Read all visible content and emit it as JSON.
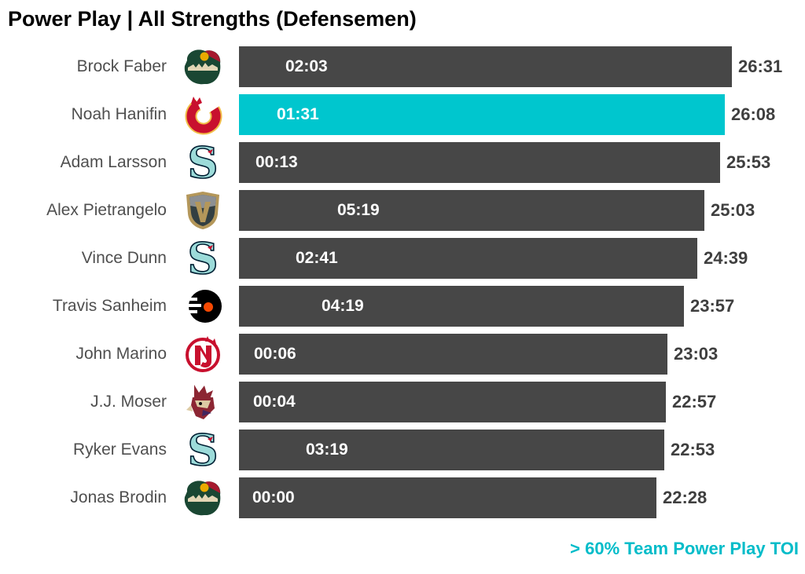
{
  "title": "Power Play | All Strengths (Defensemen)",
  "footnote": "> 60% Team Power Play TOI",
  "colors": {
    "bar": "#474747",
    "highlight_bar": "#00c6ce",
    "bar_label_text": "#ffffff",
    "value_label_text": "#3f3f3f",
    "name_text": "#4f4f4f",
    "title_text": "#000000",
    "footnote_text": "#00bcc9",
    "background": "#ffffff"
  },
  "chart_data": {
    "type": "bar",
    "orientation": "horizontal",
    "title": "Power Play | All Strengths (Defensemen)",
    "value_semantics": {
      "bar_length": "All Strengths TOI (mm:ss), right-side label",
      "inside_label": "Power Play TOI (mm:ss), printed inside bar",
      "highlight_meaning": "> 60% Team Power Play TOI"
    },
    "x_axis": {
      "visible": false,
      "min_seconds": 0,
      "max_seconds": 1591
    },
    "grid": false,
    "legend_position": "bottom-right",
    "players": [
      {
        "name": "Brock Faber",
        "team": "Minnesota Wild",
        "team_abbr": "MIN",
        "pp_toi": "02:03",
        "all_strengths_toi": "26:31",
        "highlighted": false
      },
      {
        "name": "Noah Hanifin",
        "team": "Calgary Flames",
        "team_abbr": "CGY",
        "pp_toi": "01:31",
        "all_strengths_toi": "26:08",
        "highlighted": true
      },
      {
        "name": "Adam Larsson",
        "team": "Seattle Kraken",
        "team_abbr": "SEA",
        "pp_toi": "00:13",
        "all_strengths_toi": "25:53",
        "highlighted": false
      },
      {
        "name": "Alex Pietrangelo",
        "team": "Vegas Golden Knights",
        "team_abbr": "VGK",
        "pp_toi": "05:19",
        "all_strengths_toi": "25:03",
        "highlighted": false
      },
      {
        "name": "Vince Dunn",
        "team": "Seattle Kraken",
        "team_abbr": "SEA",
        "pp_toi": "02:41",
        "all_strengths_toi": "24:39",
        "highlighted": false
      },
      {
        "name": "Travis Sanheim",
        "team": "Philadelphia Flyers",
        "team_abbr": "PHI",
        "pp_toi": "04:19",
        "all_strengths_toi": "23:57",
        "highlighted": false
      },
      {
        "name": "John Marino",
        "team": "New Jersey Devils",
        "team_abbr": "NJD",
        "pp_toi": "00:06",
        "all_strengths_toi": "23:03",
        "highlighted": false
      },
      {
        "name": "J.J. Moser",
        "team": "Arizona Coyotes",
        "team_abbr": "ARI",
        "pp_toi": "00:04",
        "all_strengths_toi": "22:57",
        "highlighted": false
      },
      {
        "name": "Ryker Evans",
        "team": "Seattle Kraken",
        "team_abbr": "SEA",
        "pp_toi": "03:19",
        "all_strengths_toi": "22:53",
        "highlighted": false
      },
      {
        "name": "Jonas Brodin",
        "team": "Minnesota Wild",
        "team_abbr": "MIN",
        "pp_toi": "00:00",
        "all_strengths_toi": "22:28",
        "highlighted": false
      }
    ]
  }
}
